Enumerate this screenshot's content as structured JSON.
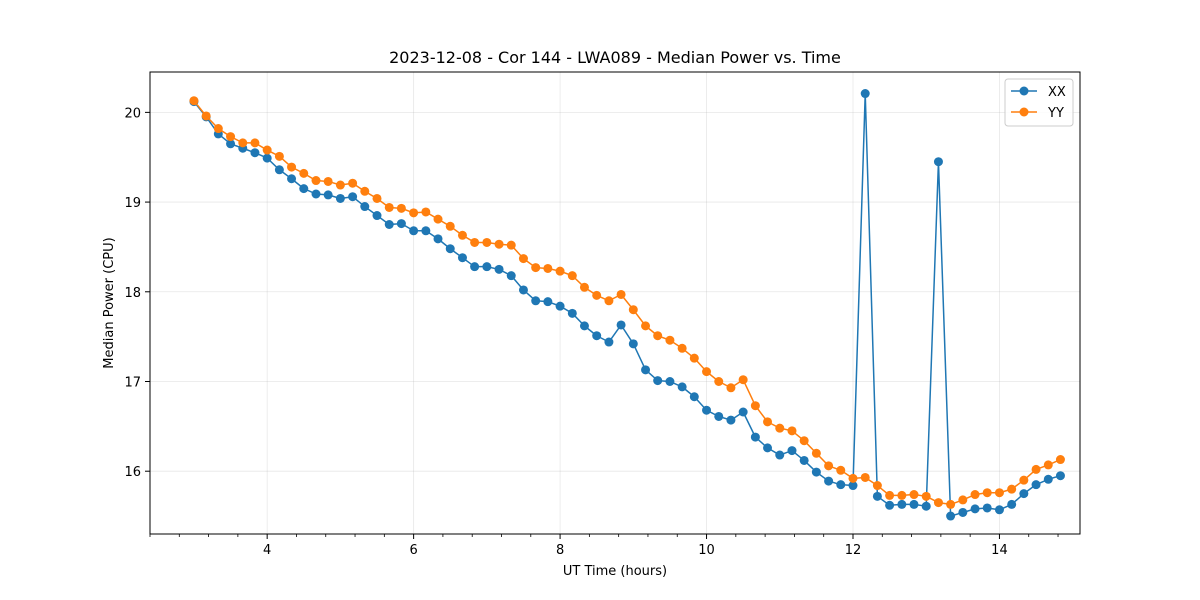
{
  "chart_data": {
    "type": "line",
    "title": "2023-12-08 - Cor 144 - LWA089 - Median Power vs. Time",
    "xlabel": "UT Time (hours)",
    "ylabel": "Median Power (CPU)",
    "xlim": [
      2.4,
      15.1
    ],
    "ylim": [
      15.3,
      20.45
    ],
    "xticks": [
      4,
      6,
      8,
      10,
      12,
      14
    ],
    "xtick_labels": [
      "4",
      "6",
      "8",
      "10",
      "12",
      "14"
    ],
    "yticks": [
      16,
      17,
      18,
      19,
      20
    ],
    "ytick_labels": [
      "16",
      "17",
      "18",
      "19",
      "20"
    ],
    "grid": true,
    "legend": "top-right",
    "x": [
      3.0,
      3.167,
      3.333,
      3.5,
      3.667,
      3.833,
      4.0,
      4.167,
      4.333,
      4.5,
      4.667,
      4.833,
      5.0,
      5.167,
      5.333,
      5.5,
      5.667,
      5.833,
      6.0,
      6.167,
      6.333,
      6.5,
      6.667,
      6.833,
      7.0,
      7.167,
      7.333,
      7.5,
      7.667,
      7.833,
      8.0,
      8.167,
      8.333,
      8.5,
      8.667,
      8.833,
      9.0,
      9.167,
      9.333,
      9.5,
      9.667,
      9.833,
      10.0,
      10.167,
      10.333,
      10.5,
      10.667,
      10.833,
      11.0,
      11.167,
      11.333,
      11.5,
      11.667,
      11.833,
      12.0,
      12.167,
      12.333,
      12.5,
      12.667,
      12.833,
      13.0,
      13.167,
      13.333,
      13.5,
      13.667,
      13.833,
      14.0,
      14.167,
      14.333,
      14.5,
      14.667,
      14.833
    ],
    "series": [
      {
        "name": "XX",
        "color": "#1f77b4",
        "values": [
          20.12,
          19.95,
          19.76,
          19.65,
          19.6,
          19.55,
          19.49,
          19.36,
          19.26,
          19.15,
          19.09,
          19.08,
          19.04,
          19.06,
          18.95,
          18.85,
          18.75,
          18.76,
          18.68,
          18.68,
          18.59,
          18.48,
          18.38,
          18.28,
          18.28,
          18.25,
          18.18,
          18.02,
          17.9,
          17.89,
          17.84,
          17.76,
          17.62,
          17.51,
          17.44,
          17.63,
          17.42,
          17.13,
          17.01,
          17.0,
          16.94,
          16.83,
          16.68,
          16.61,
          16.57,
          16.66,
          16.38,
          16.26,
          16.18,
          16.23,
          16.12,
          15.99,
          15.89,
          15.85,
          15.84,
          20.21,
          15.72,
          15.62,
          15.63,
          15.63,
          15.61,
          19.45,
          15.5,
          15.54,
          15.58,
          15.59,
          15.57,
          15.63,
          15.75,
          15.85,
          15.91,
          15.95
        ]
      },
      {
        "name": "YY",
        "color": "#ff7f0e",
        "values": [
          20.13,
          19.96,
          19.82,
          19.73,
          19.66,
          19.66,
          19.58,
          19.51,
          19.39,
          19.32,
          19.24,
          19.23,
          19.19,
          19.21,
          19.12,
          19.04,
          18.94,
          18.93,
          18.88,
          18.89,
          18.81,
          18.73,
          18.63,
          18.55,
          18.55,
          18.53,
          18.52,
          18.37,
          18.27,
          18.26,
          18.23,
          18.18,
          18.05,
          17.96,
          17.9,
          17.97,
          17.8,
          17.62,
          17.51,
          17.46,
          17.37,
          17.26,
          17.11,
          17.0,
          16.93,
          17.02,
          16.73,
          16.55,
          16.48,
          16.45,
          16.34,
          16.2,
          16.06,
          16.01,
          15.92,
          15.93,
          15.84,
          15.73,
          15.73,
          15.74,
          15.72,
          15.65,
          15.63,
          15.68,
          15.74,
          15.76,
          15.76,
          15.8,
          15.9,
          16.02,
          16.07,
          16.13
        ]
      }
    ]
  }
}
